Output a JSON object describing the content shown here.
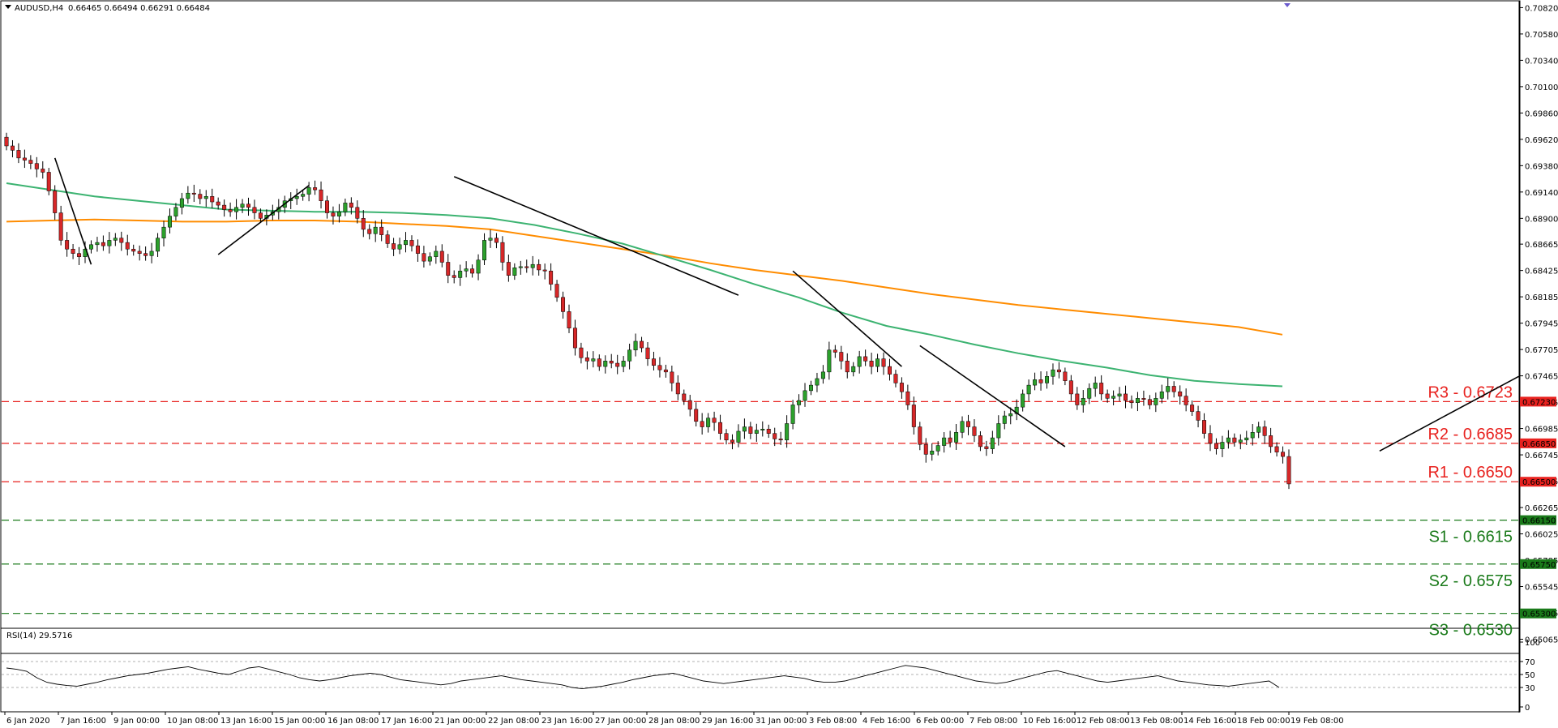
{
  "header": {
    "symbol_timeframe": "AUDUSD,H4",
    "ohlc": "0.66465 0.66494 0.66291 0.66484"
  },
  "rsi_panel": {
    "label": "RSI(14) 29.5716",
    "ticks": [
      "100",
      "70",
      "50",
      "30",
      "0"
    ]
  },
  "colors": {
    "bull_candle": "#2ca02c",
    "bear_candle": "#d62728",
    "ma_fast": "#3cb371",
    "ma_slow": "#ff8c00",
    "resistance": "#e8221f",
    "support": "#1a7a1a",
    "trendline": "#000000",
    "rsi_line": "#000000"
  },
  "chart_data": {
    "type": "candlestick",
    "price_ticks": [
      "0.70820",
      "0.70580",
      "0.70340",
      "0.70100",
      "0.69860",
      "0.69620",
      "0.69380",
      "0.69140",
      "0.68900",
      "0.68665",
      "0.68425",
      "0.68185",
      "0.67945",
      "0.67705",
      "0.67465",
      "0.67225",
      "0.66985",
      "0.66745",
      "0.66505",
      "0.66265",
      "0.66025",
      "0.65785",
      "0.65545",
      "0.65305",
      "0.65065"
    ],
    "x_labels": [
      "6 Jan 2020",
      "7 Jan 16:00",
      "9 Jan 00:00",
      "10 Jan 08:00",
      "13 Jan 16:00",
      "15 Jan 00:00",
      "16 Jan 08:00",
      "17 Jan 16:00",
      "21 Jan 00:00",
      "22 Jan 08:00",
      "23 Jan 16:00",
      "27 Jan 00:00",
      "28 Jan 08:00",
      "29 Jan 16:00",
      "31 Jan 00:00",
      "3 Feb 08:00",
      "4 Feb 16:00",
      "6 Feb 00:00",
      "7 Feb 08:00",
      "10 Feb 16:00",
      "12 Feb 08:00",
      "13 Feb 08:00",
      "14 Feb 16:00",
      "18 Feb 00:00",
      "19 Feb 08:00"
    ],
    "ylim": [
      0.6498,
      0.7086
    ],
    "levels": [
      {
        "label": "R3 - 0.6723",
        "value": 0.6723,
        "tag": "0.67230",
        "kind": "resistance"
      },
      {
        "label": "R2 - 0.6685",
        "value": 0.6685,
        "tag": "0.66850",
        "kind": "resistance"
      },
      {
        "label": "R1 - 0.6650",
        "value": 0.665,
        "tag": "0.66500",
        "kind": "resistance"
      },
      {
        "label": "S1 - 0.6615",
        "value": 0.6615,
        "tag": "0.66150",
        "kind": "support"
      },
      {
        "label": "S2 - 0.6575",
        "value": 0.6575,
        "tag": "0.65750",
        "kind": "support"
      },
      {
        "label": "S3 - 0.6530",
        "value": 0.653,
        "tag": "0.65300",
        "kind": "support"
      }
    ],
    "closes": [
      0.6956,
      0.6952,
      0.6945,
      0.6943,
      0.694,
      0.6935,
      0.6932,
      0.6915,
      0.6895,
      0.687,
      0.6862,
      0.6858,
      0.6855,
      0.6862,
      0.6866,
      0.6868,
      0.6865,
      0.687,
      0.6872,
      0.6868,
      0.6862,
      0.686,
      0.6858,
      0.6856,
      0.686,
      0.6872,
      0.6882,
      0.6892,
      0.69,
      0.6908,
      0.6913,
      0.6912,
      0.6908,
      0.691,
      0.6905,
      0.6902,
      0.6898,
      0.6896,
      0.69,
      0.6903,
      0.69,
      0.6895,
      0.689,
      0.6893,
      0.6896,
      0.69,
      0.6906,
      0.6908,
      0.691,
      0.6912,
      0.6918,
      0.6916,
      0.6906,
      0.6895,
      0.6892,
      0.6896,
      0.6904,
      0.69,
      0.689,
      0.688,
      0.6876,
      0.6882,
      0.6875,
      0.6867,
      0.6862,
      0.6866,
      0.687,
      0.6865,
      0.6858,
      0.6851,
      0.6855,
      0.686,
      0.685,
      0.6838,
      0.6836,
      0.6842,
      0.6844,
      0.684,
      0.6852,
      0.687,
      0.6872,
      0.6868,
      0.685,
      0.6838,
      0.6845,
      0.6846,
      0.6845,
      0.6848,
      0.6843,
      0.6842,
      0.683,
      0.6818,
      0.6805,
      0.679,
      0.6772,
      0.6763,
      0.676,
      0.6762,
      0.6755,
      0.676,
      0.6758,
      0.6755,
      0.676,
      0.677,
      0.6778,
      0.6772,
      0.6762,
      0.6756,
      0.6752,
      0.675,
      0.674,
      0.673,
      0.6724,
      0.6716,
      0.6705,
      0.67,
      0.6708,
      0.6704,
      0.6694,
      0.6688,
      0.6686,
      0.6696,
      0.67,
      0.6694,
      0.6697,
      0.6698,
      0.6694,
      0.6689,
      0.6688,
      0.6703,
      0.672,
      0.6724,
      0.6733,
      0.6738,
      0.6744,
      0.675,
      0.677,
      0.6768,
      0.676,
      0.675,
      0.6755,
      0.6764,
      0.676,
      0.6755,
      0.6762,
      0.6755,
      0.6748,
      0.674,
      0.6732,
      0.672,
      0.67,
      0.6684,
      0.6675,
      0.6678,
      0.6683,
      0.669,
      0.6686,
      0.6695,
      0.6705,
      0.67,
      0.6692,
      0.6682,
      0.668,
      0.669,
      0.6703,
      0.671,
      0.6712,
      0.6718,
      0.673,
      0.6738,
      0.6743,
      0.674,
      0.6746,
      0.6752,
      0.675,
      0.6742,
      0.673,
      0.672,
      0.6726,
      0.6735,
      0.674,
      0.673,
      0.6726,
      0.6728,
      0.673,
      0.6724,
      0.6722,
      0.6726,
      0.6725,
      0.672,
      0.6726,
      0.6732,
      0.6737,
      0.6732,
      0.6728,
      0.672,
      0.6714,
      0.6706,
      0.6694,
      0.6685,
      0.668,
      0.6686,
      0.669,
      0.6686,
      0.6688,
      0.669,
      0.6695,
      0.67,
      0.6692,
      0.6682,
      0.6677,
      0.6673,
      0.6648
    ],
    "ma_fast": [
      0.6922,
      0.6916,
      0.691,
      0.6906,
      0.6902,
      0.6898,
      0.6897,
      0.6896,
      0.6896,
      0.6895,
      0.6893,
      0.689,
      0.6884,
      0.6876,
      0.6867,
      0.6855,
      0.6843,
      0.683,
      0.6818,
      0.6804,
      0.6792,
      0.6784,
      0.6775,
      0.6767,
      0.676,
      0.6754,
      0.6747,
      0.6742,
      0.6739,
      0.6737
    ],
    "ma_slow": [
      0.6887,
      0.6888,
      0.6889,
      0.6888,
      0.6887,
      0.6887,
      0.6888,
      0.6888,
      0.6887,
      0.6885,
      0.6883,
      0.688,
      0.6874,
      0.6868,
      0.6862,
      0.6856,
      0.6849,
      0.6843,
      0.6838,
      0.6833,
      0.6827,
      0.6821,
      0.6816,
      0.6811,
      0.6807,
      0.6803,
      0.6799,
      0.6795,
      0.6791,
      0.6784
    ],
    "trendlines": [
      {
        "from": [
          8,
          0.6945
        ],
        "to": [
          14,
          0.6848
        ]
      },
      {
        "from": [
          35,
          0.6857
        ],
        "to": [
          50,
          0.692
        ]
      },
      {
        "from": [
          74,
          0.6928
        ],
        "to": [
          121,
          0.682
        ]
      },
      {
        "from": [
          130,
          0.6842
        ],
        "to": [
          148,
          0.6755
        ]
      },
      {
        "from": [
          151,
          0.6774
        ],
        "to": [
          175,
          0.6682
        ]
      },
      {
        "from": [
          227,
          0.6678
        ],
        "to": [
          250,
          0.6746
        ]
      }
    ],
    "rsi": [
      60,
      58,
      55,
      45,
      38,
      35,
      33,
      32,
      35,
      38,
      42,
      45,
      48,
      50,
      52,
      55,
      58,
      60,
      62,
      58,
      55,
      52,
      50,
      55,
      60,
      62,
      58,
      54,
      50,
      45,
      42,
      40,
      42,
      45,
      48,
      50,
      52,
      50,
      46,
      42,
      40,
      38,
      36,
      34,
      36,
      40,
      42,
      44,
      46,
      48,
      45,
      42,
      40,
      38,
      36,
      34,
      30,
      28,
      30,
      32,
      35,
      38,
      42,
      45,
      48,
      50,
      52,
      48,
      44,
      40,
      38,
      36,
      38,
      40,
      42,
      44,
      46,
      48,
      46,
      44,
      40,
      38,
      38,
      40,
      44,
      48,
      52,
      56,
      60,
      64,
      62,
      60,
      56,
      52,
      48,
      44,
      40,
      38,
      36,
      38,
      42,
      46,
      50,
      54,
      56,
      52,
      48,
      44,
      40,
      38,
      40,
      42,
      44,
      46,
      48,
      44,
      40,
      38,
      36,
      34,
      33,
      32,
      34,
      36,
      38,
      40,
      30
    ]
  }
}
